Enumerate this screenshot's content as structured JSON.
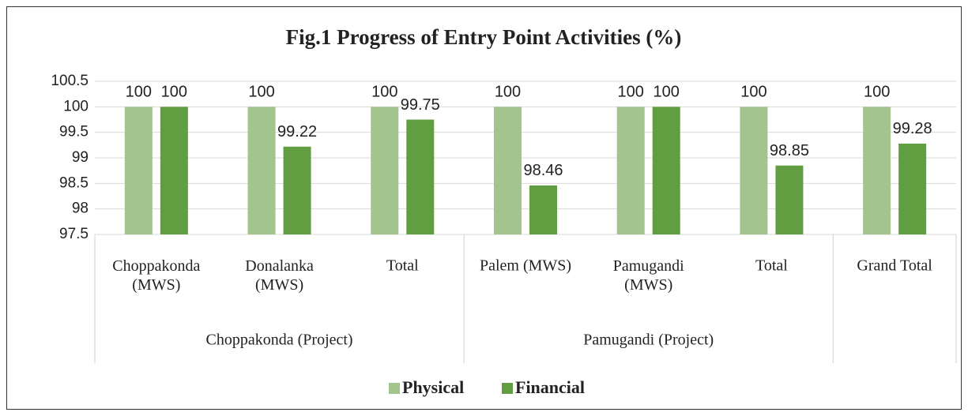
{
  "chart_data": {
    "type": "bar",
    "title": "Fig.1 Progress of Entry Point Activities (%)",
    "category_groups": [
      {
        "name": "Choppakonda (Project)",
        "categories": [
          "Choppakonda (MWS)",
          "Donalanka (MWS)",
          "Total"
        ]
      },
      {
        "name": "Pamugandi (Project)",
        "categories": [
          "Palem (MWS)",
          "Pamugandi (MWS)",
          "Total"
        ]
      },
      {
        "name": null,
        "categories": [
          "Grand Total"
        ]
      }
    ],
    "series": [
      {
        "name": "Physical",
        "color": "#a3c48f",
        "values": [
          100,
          100,
          100,
          100,
          100,
          100,
          100
        ]
      },
      {
        "name": "Financial",
        "color": "#619e41",
        "values": [
          100,
          99.22,
          99.75,
          98.46,
          100,
          98.85,
          99.28
        ]
      }
    ],
    "ylim": [
      97.5,
      100.5
    ],
    "yticks": [
      97.5,
      98,
      98.5,
      99,
      99.5,
      100,
      100.5
    ],
    "grid": true,
    "legend": "bottom"
  }
}
